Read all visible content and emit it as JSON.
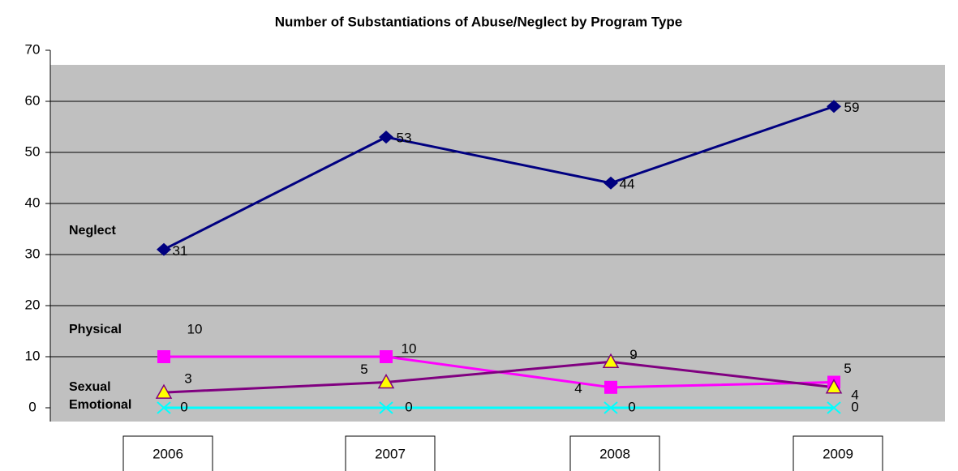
{
  "chart_data": {
    "type": "line",
    "title": "Number of Substantiations of Abuse/Neglect by Program Type",
    "categories": [
      "2006",
      "2007",
      "2008",
      "2009"
    ],
    "series": [
      {
        "name": "Neglect",
        "color": "#000080",
        "marker": "diamond",
        "values": [
          31,
          53,
          44,
          59
        ]
      },
      {
        "name": "Physical",
        "color": "#ff00ff",
        "marker": "square",
        "values": [
          10,
          10,
          4,
          5
        ]
      },
      {
        "name": "Sexual",
        "color": "#800080",
        "marker": "triangle",
        "values": [
          3,
          5,
          9,
          4
        ]
      },
      {
        "name": "Emotional",
        "color": "#00ffff",
        "marker": "x",
        "values": [
          0,
          0,
          0,
          0
        ]
      }
    ],
    "ylim": [
      0,
      70
    ],
    "yticks": [
      0,
      10,
      20,
      30,
      40,
      50,
      60,
      70
    ],
    "grid": true
  }
}
